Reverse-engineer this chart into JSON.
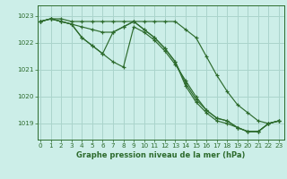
{
  "bg_color": "#cceee8",
  "grid_color": "#aad4cc",
  "line_color": "#2d6b2d",
  "marker_color": "#2d6b2d",
  "xlabel": "Graphe pression niveau de la mer (hPa)",
  "xlabel_color": "#2d6b2d",
  "ylabel_ticks": [
    1019,
    1020,
    1021,
    1022,
    1023
  ],
  "xticks": [
    0,
    1,
    2,
    3,
    4,
    5,
    6,
    7,
    8,
    9,
    10,
    11,
    12,
    13,
    14,
    15,
    16,
    17,
    18,
    19,
    20,
    21,
    22,
    23
  ],
  "ylim": [
    1018.4,
    1023.4
  ],
  "xlim": [
    -0.3,
    23.5
  ],
  "series": [
    [
      1022.8,
      1022.9,
      1022.9,
      1022.8,
      1022.8,
      1022.8,
      1022.8,
      1022.8,
      1022.8,
      1022.8,
      1022.8,
      1022.8,
      1022.8,
      1022.8,
      1022.5,
      1022.2,
      1021.5,
      1020.8,
      1020.2,
      1019.7,
      1019.4,
      1019.1,
      1019.0,
      1019.1
    ],
    [
      1022.8,
      1022.9,
      1022.8,
      1022.7,
      1022.2,
      1021.9,
      1021.6,
      1021.3,
      1021.1,
      1022.6,
      1022.4,
      1022.1,
      1021.7,
      1021.2,
      1020.6,
      1020.0,
      1019.5,
      1019.2,
      1019.1,
      1018.85,
      1018.7,
      1018.7,
      1019.0,
      1019.1
    ],
    [
      1022.8,
      1022.9,
      1022.8,
      1022.7,
      1022.2,
      1021.9,
      1021.6,
      1022.4,
      1022.6,
      1022.8,
      1022.5,
      1022.2,
      1021.8,
      1021.3,
      1020.5,
      1019.9,
      1019.5,
      1019.2,
      1019.1,
      1018.85,
      1018.7,
      1018.7,
      1019.0,
      1019.1
    ],
    [
      1022.8,
      1022.9,
      1022.8,
      1022.7,
      1022.6,
      1022.5,
      1022.4,
      1022.4,
      1022.6,
      1022.8,
      1022.5,
      1022.2,
      1021.8,
      1021.3,
      1020.4,
      1019.8,
      1019.4,
      1019.1,
      1019.0,
      1018.85,
      1018.7,
      1018.7,
      1019.0,
      1019.1
    ]
  ]
}
